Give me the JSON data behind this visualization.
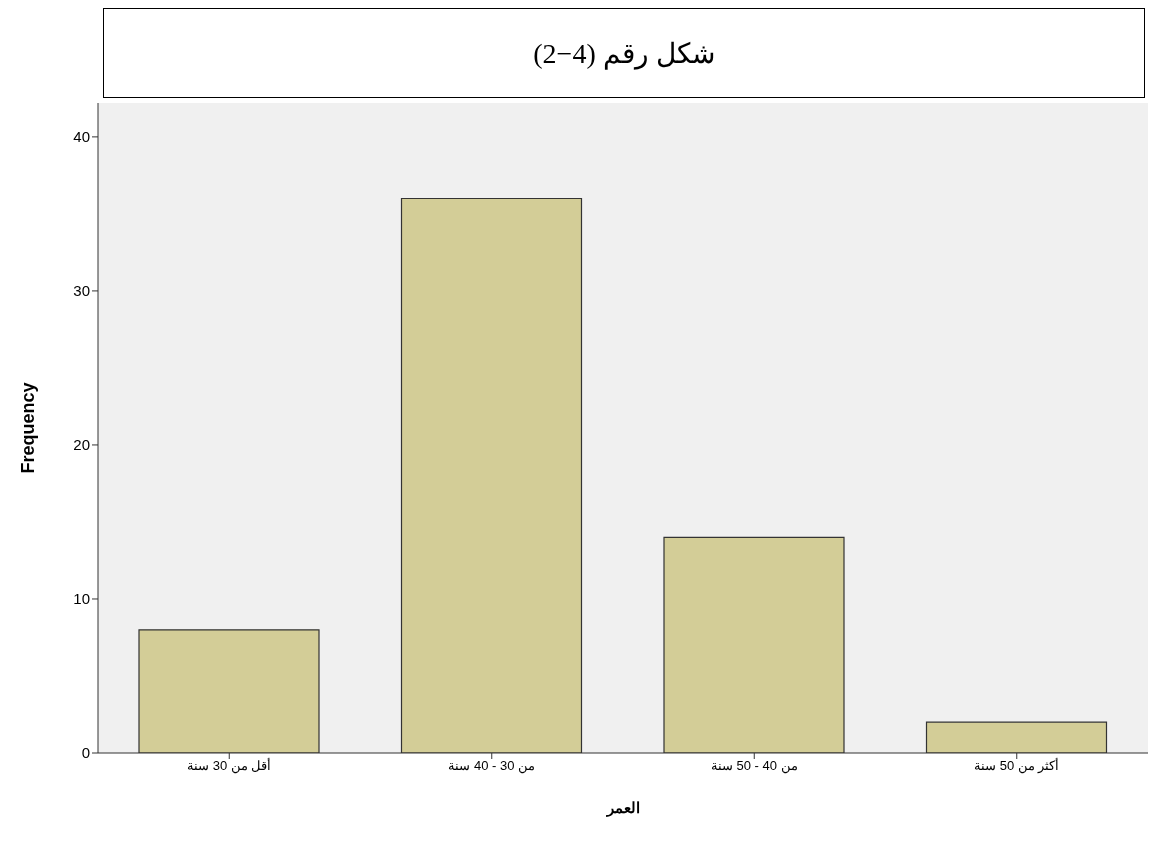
{
  "chart_data": {
    "type": "bar",
    "title": "شكل رقم (4−2)",
    "xlabel": "العمر",
    "ylabel": "Frequency",
    "categories": [
      "أقل من 30 سنة",
      "من 30 - 40 سنة",
      "من 40 - 50 سنة",
      "أكثر من 50 سنة"
    ],
    "values": [
      8,
      36,
      14,
      2
    ],
    "color": "#d3cd97",
    "ylim": [
      0,
      42.2
    ],
    "yticks": [
      0,
      10,
      20,
      30,
      40
    ],
    "grid": false,
    "legend": false
  }
}
